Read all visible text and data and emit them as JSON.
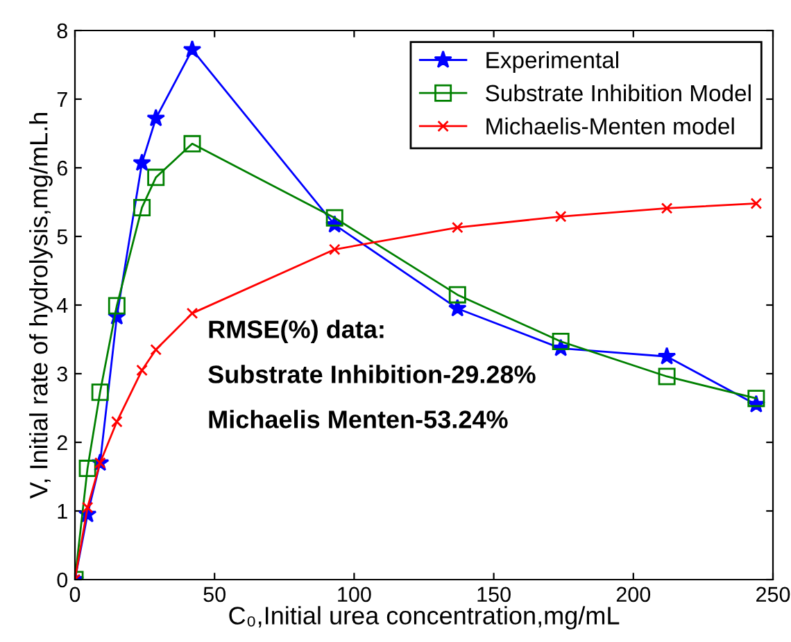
{
  "chart_data": {
    "type": "line",
    "xlabel": "C₀,Initial urea concentration,mg/mL",
    "ylabel": "V, Initial rate of hydrolysis,mg/mL.h",
    "x": [
      0,
      4.5,
      9,
      15,
      24,
      29,
      42,
      93,
      137,
      174,
      212,
      244
    ],
    "series": [
      {
        "name": "Experimental",
        "color": "#0000ff",
        "marker": "star",
        "values": [
          0,
          0.95,
          1.7,
          3.83,
          6.07,
          6.72,
          7.72,
          5.17,
          3.95,
          3.37,
          3.25,
          2.55
        ]
      },
      {
        "name": "Substrate Inhibition Model",
        "color": "#008000",
        "marker": "square",
        "values": [
          0,
          1.62,
          2.73,
          3.99,
          5.42,
          5.86,
          6.35,
          5.27,
          4.15,
          3.47,
          2.96,
          2.64
        ]
      },
      {
        "name": "Michaelis-Menten model",
        "color": "#ff0000",
        "marker": "cross",
        "values": [
          0,
          1.05,
          1.7,
          2.3,
          3.05,
          3.35,
          3.88,
          4.81,
          5.13,
          5.29,
          5.41,
          5.48
        ]
      }
    ],
    "annotations": [
      "RMSE(%) data:",
      "Substrate Inhibition-29.28%",
      "Michaelis Menten-53.24%"
    ],
    "xlim": [
      0,
      250
    ],
    "xticks": [
      0,
      50,
      100,
      150,
      200,
      250
    ],
    "ylim": [
      0,
      8
    ],
    "yticks": [
      0,
      1,
      2,
      3,
      4,
      5,
      6,
      7,
      8
    ],
    "legend": "top right",
    "grid": false,
    "line_style": "solid"
  }
}
